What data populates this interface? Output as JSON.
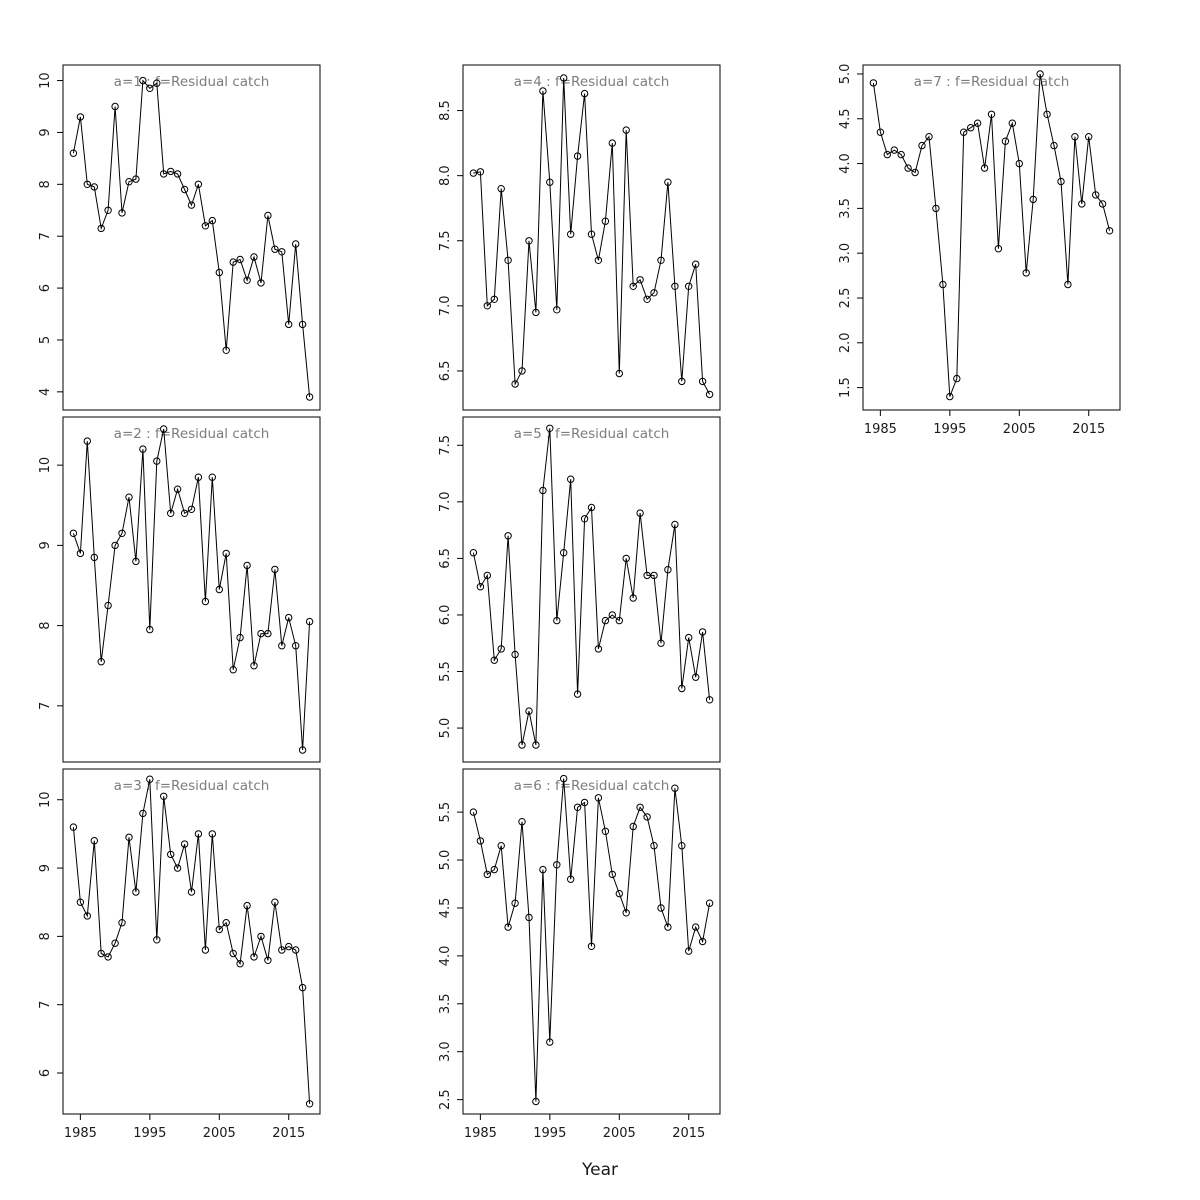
{
  "figure": {
    "xlabel": "Year"
  },
  "chart_data": [
    {
      "type": "line",
      "title": "a=1  :  f=Residual catch",
      "x_start": 1984,
      "xlim": [
        1982.5,
        2019.5
      ],
      "x_ticks": [
        1985,
        1995,
        2005,
        2015
      ],
      "show_x_tick_labels": false,
      "ylim": [
        3.65,
        10.3
      ],
      "y_ticks": [
        4,
        5,
        6,
        7,
        8,
        9,
        10
      ],
      "values": [
        8.6,
        9.3,
        8.0,
        7.95,
        7.15,
        7.5,
        9.5,
        7.45,
        8.05,
        8.1,
        10.0,
        9.85,
        9.95,
        8.2,
        8.25,
        8.2,
        7.9,
        7.6,
        8.0,
        7.2,
        7.3,
        6.3,
        4.8,
        6.5,
        6.55,
        6.15,
        6.6,
        6.1,
        7.4,
        6.75,
        6.7,
        5.3,
        6.85,
        5.3,
        3.9
      ]
    },
    {
      "type": "line",
      "title": "a=2  :  f=Residual catch",
      "x_start": 1984,
      "xlim": [
        1982.5,
        2019.5
      ],
      "x_ticks": [
        1985,
        1995,
        2005,
        2015
      ],
      "show_x_tick_labels": false,
      "ylim": [
        6.3,
        10.6
      ],
      "y_ticks": [
        7,
        8,
        9,
        10
      ],
      "values": [
        9.15,
        8.9,
        10.3,
        8.85,
        7.55,
        8.25,
        9.0,
        9.15,
        9.6,
        8.8,
        10.2,
        7.95,
        10.05,
        10.45,
        9.4,
        9.7,
        9.4,
        9.45,
        9.85,
        8.3,
        9.85,
        8.45,
        8.9,
        7.45,
        7.85,
        8.75,
        7.5,
        7.9,
        7.9,
        8.7,
        7.75,
        8.1,
        7.75,
        6.45,
        8.05
      ]
    },
    {
      "type": "line",
      "title": "a=3  :  f=Residual catch",
      "x_start": 1984,
      "xlim": [
        1982.5,
        2019.5
      ],
      "x_ticks": [
        1985,
        1995,
        2005,
        2015
      ],
      "show_x_tick_labels": true,
      "ylim": [
        5.4,
        10.45
      ],
      "y_ticks": [
        6,
        7,
        8,
        9,
        10
      ],
      "values": [
        9.6,
        8.5,
        8.3,
        9.4,
        7.75,
        7.7,
        7.9,
        8.2,
        9.45,
        8.65,
        9.8,
        10.3,
        7.95,
        10.05,
        9.2,
        9.0,
        9.35,
        8.65,
        9.5,
        7.8,
        9.5,
        8.1,
        8.2,
        7.75,
        7.6,
        8.45,
        7.7,
        8.0,
        7.65,
        8.5,
        7.8,
        7.85,
        7.8,
        7.25,
        5.55
      ]
    },
    {
      "type": "line",
      "title": "a=4  :  f=Residual catch",
      "x_start": 1984,
      "xlim": [
        1982.5,
        2019.5
      ],
      "x_ticks": [
        1985,
        1995,
        2005,
        2015
      ],
      "show_x_tick_labels": false,
      "ylim": [
        6.2,
        8.85
      ],
      "y_ticks": [
        6.5,
        7.0,
        7.5,
        8.0,
        8.5
      ],
      "values": [
        8.02,
        8.03,
        7.0,
        7.05,
        7.9,
        7.35,
        6.4,
        6.5,
        7.5,
        6.95,
        8.65,
        7.95,
        6.97,
        8.75,
        7.55,
        8.15,
        8.63,
        7.55,
        7.35,
        7.65,
        8.25,
        6.48,
        8.35,
        7.15,
        7.2,
        7.05,
        7.1,
        7.35,
        7.95,
        7.15,
        6.42,
        7.15,
        7.32,
        6.42,
        6.32
      ]
    },
    {
      "type": "line",
      "title": "a=5  :  f=Residual catch",
      "x_start": 1984,
      "xlim": [
        1982.5,
        2019.5
      ],
      "x_ticks": [
        1985,
        1995,
        2005,
        2015
      ],
      "show_x_tick_labels": false,
      "ylim": [
        4.7,
        7.75
      ],
      "y_ticks": [
        5.0,
        5.5,
        6.0,
        6.5,
        7.0,
        7.5
      ],
      "values": [
        6.55,
        6.25,
        6.35,
        5.6,
        5.7,
        6.7,
        5.65,
        4.85,
        5.15,
        4.85,
        7.1,
        7.65,
        5.95,
        6.55,
        7.2,
        5.3,
        6.85,
        6.95,
        5.7,
        5.95,
        6.0,
        5.95,
        6.5,
        6.15,
        6.9,
        6.35,
        6.35,
        5.75,
        6.4,
        6.8,
        5.35,
        5.8,
        5.45,
        5.85,
        5.25
      ]
    },
    {
      "type": "line",
      "title": "a=6  :  f=Residual catch",
      "x_start": 1984,
      "xlim": [
        1982.5,
        2019.5
      ],
      "x_ticks": [
        1985,
        1995,
        2005,
        2015
      ],
      "show_x_tick_labels": true,
      "ylim": [
        2.35,
        5.95
      ],
      "y_ticks": [
        2.5,
        3.0,
        3.5,
        4.0,
        4.5,
        5.0,
        5.5
      ],
      "values": [
        5.5,
        5.2,
        4.85,
        4.9,
        5.15,
        4.3,
        4.55,
        5.4,
        4.4,
        2.48,
        4.9,
        3.1,
        4.95,
        5.85,
        4.8,
        5.55,
        5.6,
        4.1,
        5.65,
        5.3,
        4.85,
        4.65,
        4.45,
        5.35,
        5.55,
        5.45,
        5.15,
        4.5,
        4.3,
        5.75,
        5.15,
        4.05,
        4.3,
        4.15,
        4.55
      ]
    },
    {
      "type": "line",
      "title": "a=7  :  f=Residual catch",
      "x_start": 1984,
      "xlim": [
        1982.5,
        2019.5
      ],
      "x_ticks": [
        1985,
        1995,
        2005,
        2015
      ],
      "show_x_tick_labels": true,
      "ylim": [
        1.25,
        5.1
      ],
      "y_ticks": [
        1.5,
        2.0,
        2.5,
        3.0,
        3.5,
        4.0,
        4.5,
        5.0
      ],
      "values": [
        4.9,
        4.35,
        4.1,
        4.15,
        4.1,
        3.95,
        3.9,
        4.2,
        4.3,
        3.5,
        2.65,
        1.4,
        1.6,
        4.35,
        4.4,
        4.45,
        3.95,
        4.55,
        3.05,
        4.25,
        4.45,
        4.0,
        2.78,
        3.6,
        5.0,
        4.55,
        4.2,
        3.8,
        2.65,
        4.3,
        3.55,
        4.3,
        3.65,
        3.55,
        3.25
      ]
    }
  ],
  "style": {
    "line_color": "#000000",
    "marker": "open-circle",
    "title_color": "#7d7d7d",
    "axis_color": "#000000"
  }
}
